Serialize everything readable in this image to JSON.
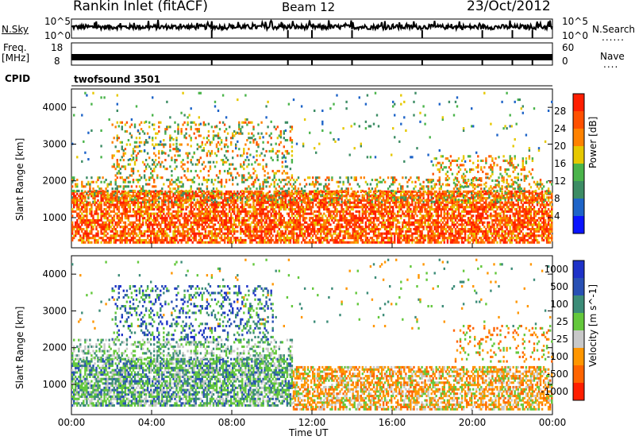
{
  "header": {
    "station": "Rankin Inlet (fitACF)",
    "beam": "Beam 12",
    "date": "23/Oct/2012"
  },
  "noise_panel": {
    "left_label": "N.Sky",
    "right_label": "N.Search",
    "ticks_left": [
      "10^5",
      "10^0"
    ],
    "ticks_right": [
      "10^5",
      "10^0"
    ]
  },
  "freq_panel": {
    "left_label_1": "Freq.",
    "left_label_2": "[MHz]",
    "right_label": "Nave",
    "ticks_left": [
      "18",
      "8"
    ],
    "ticks_right": [
      "60",
      "0"
    ]
  },
  "cpid_panel": {
    "label": "CPID",
    "program": "twofsound 3501"
  },
  "chart_data": [
    {
      "type": "heatmap",
      "parameter": "Power",
      "ylabel": "Slant Range [km]",
      "y_ticks": [
        "1000",
        "2000",
        "3000",
        "4000"
      ],
      "ylim": [
        180,
        4500
      ],
      "colorbar_label": "Power [dB]",
      "colorbar_ticks": [
        "4",
        "8",
        "12",
        "16",
        "20",
        "24",
        "28"
      ],
      "colors": [
        "#0a14ff",
        "#1e64c8",
        "#3c8c64",
        "#4ab44a",
        "#e6c800",
        "#ff8200",
        "#ff5000",
        "#ff1e00"
      ],
      "dominant_features": [
        {
          "x": [
            0,
            24
          ],
          "range_km": [
            300,
            1700
          ],
          "value": "20-28 dB"
        },
        {
          "x": [
            2,
            11
          ],
          "range_km": [
            2000,
            3500
          ],
          "value": "12-24 dB"
        },
        {
          "x": [
            18,
            23
          ],
          "range_km": [
            1800,
            2700
          ],
          "value": "12-24 dB"
        }
      ]
    },
    {
      "type": "heatmap",
      "parameter": "Velocity",
      "ylabel": "Slant Range [km]",
      "y_ticks": [
        "1000",
        "2000",
        "3000",
        "4000"
      ],
      "ylim": [
        180,
        4500
      ],
      "colorbar_label": "Velocity [m s^-1]",
      "colorbar_ticks": [
        "1000",
        "500",
        "100",
        "25",
        "-25",
        "-100",
        "-500",
        "-1000"
      ],
      "colors": [
        "#1e32c8",
        "#2850b4",
        "#3c8c78",
        "#64c83c",
        "#c8c8c8",
        "#ff9600",
        "#ff6400",
        "#ff1e00"
      ],
      "dominant_features": [
        {
          "x": [
            0,
            11
          ],
          "range_km": [
            400,
            1700
          ],
          "value": "25 to 500 m/s"
        },
        {
          "x": [
            2,
            10
          ],
          "range_km": [
            2200,
            3700
          ],
          "value": "100 to 1000 m/s"
        },
        {
          "x": [
            12,
            24
          ],
          "range_km": [
            300,
            1500
          ],
          "value": "-25 to -500 m/s"
        }
      ]
    }
  ],
  "x_axis": {
    "label": "Time UT",
    "ticks": [
      "00:00",
      "04:00",
      "08:00",
      "12:00",
      "16:00",
      "20:00",
      "00:00"
    ]
  }
}
